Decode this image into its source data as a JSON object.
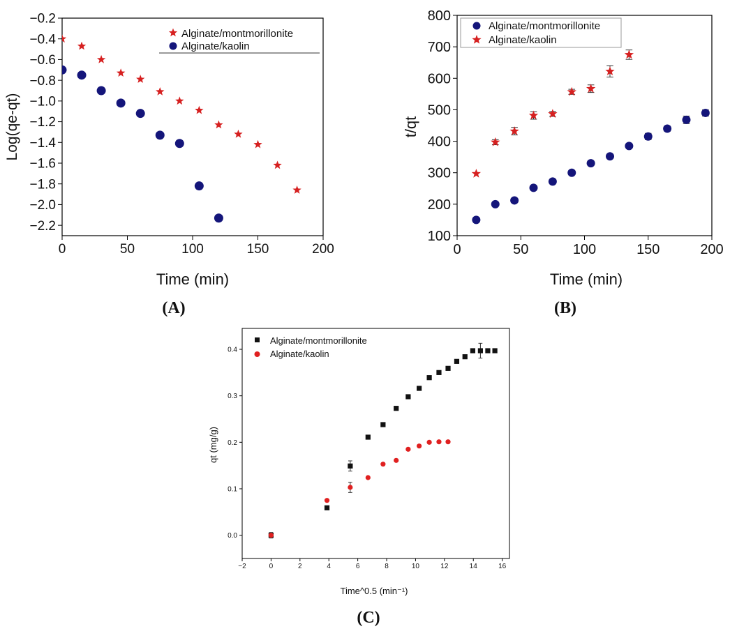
{
  "chart_data": [
    {
      "id": "A",
      "type": "scatter",
      "panel_label": "(A)",
      "xlabel": "Time (min)",
      "ylabel": "Log(qe-qt)",
      "xlim": [
        0,
        200
      ],
      "ylim": [
        -2.3,
        -0.2
      ],
      "xticks": [
        "0",
        "50",
        "100",
        "150",
        "200"
      ],
      "yticks": [
        "−0.2",
        "−0.4",
        "−0.6",
        "−0.8",
        "−1.0",
        "−1.2",
        "−1.4",
        "−1.6",
        "−1.8",
        "−2.0",
        "−2.2"
      ],
      "legend": "top-right",
      "series": [
        {
          "name": "Alginate/montmorillonite",
          "marker": "star",
          "color": "#d62020",
          "x": [
            0,
            15,
            30,
            45,
            60,
            75,
            90,
            105,
            120,
            135,
            150,
            165,
            180
          ],
          "y": [
            -0.4,
            -0.47,
            -0.6,
            -0.73,
            -0.79,
            -0.91,
            -1.0,
            -1.09,
            -1.23,
            -1.32,
            -1.42,
            -1.62,
            -1.86
          ]
        },
        {
          "name": "Alginate/kaolin",
          "marker": "circle",
          "color": "#14157a",
          "x": [
            0,
            15,
            30,
            45,
            60,
            75,
            90,
            105,
            120
          ],
          "y": [
            -0.7,
            -0.75,
            -0.9,
            -1.02,
            -1.12,
            -1.33,
            -1.41,
            -1.82,
            -2.13
          ]
        }
      ]
    },
    {
      "id": "B",
      "type": "scatter",
      "panel_label": "(B)",
      "xlabel": "Time (min)",
      "ylabel": "t/qt",
      "xlim": [
        0,
        200
      ],
      "ylim": [
        100,
        800
      ],
      "xticks": [
        "0",
        "50",
        "100",
        "150",
        "200"
      ],
      "yticks": [
        "100",
        "200",
        "300",
        "400",
        "500",
        "600",
        "700",
        "800"
      ],
      "legend": "top-left",
      "series": [
        {
          "name": "Alginate/montmorillonite",
          "marker": "circle",
          "color": "#14157a",
          "x": [
            15,
            30,
            45,
            60,
            75,
            90,
            105,
            120,
            135,
            150,
            165,
            180,
            195
          ],
          "y": [
            150,
            200,
            212,
            252,
            272,
            300,
            330,
            352,
            385,
            415,
            440,
            468,
            490
          ],
          "err": [
            0,
            0,
            0,
            0,
            0,
            0,
            0,
            0,
            0,
            10,
            8,
            12,
            10
          ]
        },
        {
          "name": "Alginate/kaolin",
          "marker": "star",
          "color": "#d62020",
          "x": [
            15,
            30,
            45,
            60,
            75,
            90,
            105,
            120,
            135
          ],
          "y": [
            297,
            397,
            432,
            482,
            487,
            557,
            567,
            622,
            675
          ],
          "err": [
            0,
            8,
            12,
            12,
            8,
            8,
            12,
            18,
            15
          ]
        }
      ]
    },
    {
      "id": "C",
      "type": "scatter",
      "panel_label": "(C)",
      "xlabel": "Time^0.5 (min⁻¹)",
      "ylabel": "qt (mg/g)",
      "xlim": [
        -2,
        16.5
      ],
      "ylim": [
        -0.05,
        0.445
      ],
      "xticks": [
        "−2",
        "0",
        "2",
        "4",
        "6",
        "8",
        "10",
        "12",
        "14",
        "16"
      ],
      "yticks": [
        "0.0",
        "0.1",
        "0.2",
        "0.3",
        "0.4"
      ],
      "legend": "top-left",
      "series": [
        {
          "name": "Alginate/montmorillonite",
          "marker": "square",
          "color": "#111111",
          "x": [
            0,
            3.87,
            5.48,
            6.71,
            7.75,
            8.66,
            9.49,
            10.25,
            10.95,
            11.62,
            12.25,
            12.85,
            13.42,
            13.96,
            14.49,
            15.0,
            15.49
          ],
          "y": [
            0.0,
            0.059,
            0.149,
            0.211,
            0.238,
            0.273,
            0.298,
            0.316,
            0.339,
            0.35,
            0.359,
            0.374,
            0.384,
            0.397,
            0.397,
            0.397,
            0.397
          ],
          "err": [
            0,
            0,
            0.011,
            0,
            0,
            0,
            0,
            0,
            0,
            0,
            0,
            0,
            0,
            0,
            0.016,
            0,
            0
          ]
        },
        {
          "name": "Alginate/kaolin",
          "marker": "circle",
          "color": "#e02020",
          "x": [
            0,
            3.87,
            5.48,
            6.71,
            7.75,
            8.66,
            9.49,
            10.25,
            10.95,
            11.62,
            12.25
          ],
          "y": [
            0.0,
            0.075,
            0.103,
            0.124,
            0.153,
            0.161,
            0.185,
            0.192,
            0.2,
            0.201,
            0.201
          ],
          "err": [
            0.006,
            0,
            0.011,
            0,
            0,
            0,
            0,
            0,
            0,
            0,
            0
          ]
        }
      ]
    }
  ]
}
